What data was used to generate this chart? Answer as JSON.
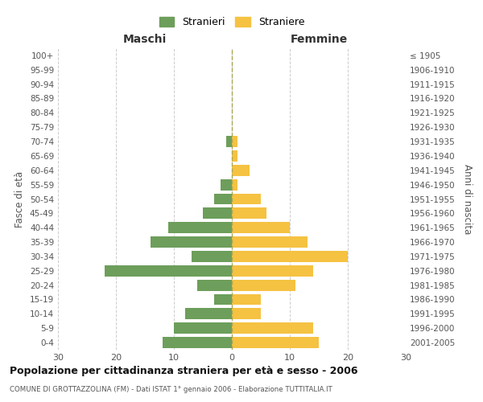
{
  "age_groups": [
    "0-4",
    "5-9",
    "10-14",
    "15-19",
    "20-24",
    "25-29",
    "30-34",
    "35-39",
    "40-44",
    "45-49",
    "50-54",
    "55-59",
    "60-64",
    "65-69",
    "70-74",
    "75-79",
    "80-84",
    "85-89",
    "90-94",
    "95-99",
    "100+"
  ],
  "birth_years": [
    "2001-2005",
    "1996-2000",
    "1991-1995",
    "1986-1990",
    "1981-1985",
    "1976-1980",
    "1971-1975",
    "1966-1970",
    "1961-1965",
    "1956-1960",
    "1951-1955",
    "1946-1950",
    "1941-1945",
    "1936-1940",
    "1931-1935",
    "1926-1930",
    "1921-1925",
    "1916-1920",
    "1911-1915",
    "1906-1910",
    "≤ 1905"
  ],
  "males": [
    12,
    10,
    8,
    3,
    6,
    22,
    7,
    14,
    11,
    5,
    3,
    2,
    0,
    0,
    1,
    0,
    0,
    0,
    0,
    0,
    0
  ],
  "females": [
    15,
    14,
    5,
    5,
    11,
    14,
    20,
    13,
    10,
    6,
    5,
    1,
    3,
    1,
    1,
    0,
    0,
    0,
    0,
    0,
    0
  ],
  "male_color": "#6d9e5b",
  "female_color": "#f5c242",
  "title": "Popolazione per cittadinanza straniera per età e sesso - 2006",
  "subtitle": "COMUNE DI GROTTAZZOLINA (FM) - Dati ISTAT 1° gennaio 2006 - Elaborazione TUTTITALIA.IT",
  "legend_male": "Stranieri",
  "legend_female": "Straniere",
  "xlabel_left": "Maschi",
  "xlabel_right": "Femmine",
  "ylabel_left": "Fasce di età",
  "ylabel_right": "Anni di nascita",
  "xlim": 30,
  "background_color": "#ffffff",
  "grid_color": "#cccccc"
}
